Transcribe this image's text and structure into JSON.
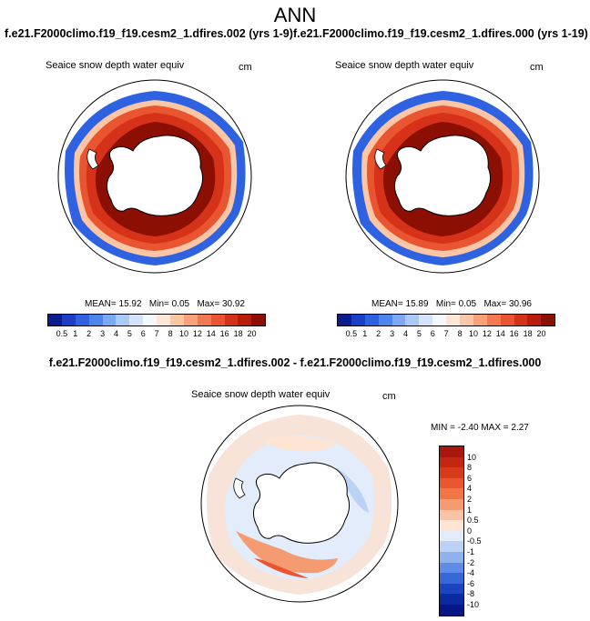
{
  "title": "ANN",
  "panels": [
    {
      "case": "f.e21.F2000climo.f19_f19.cesm2_1.dfires.002 (yrs 1-9)",
      "field": "Seaice snow depth water equiv",
      "units": "cm",
      "mean_label": "MEAN=",
      "mean": "15.92",
      "min_label": "Min=",
      "min": "0.05",
      "max_label": "Max=",
      "max": "30.92"
    },
    {
      "case": "f.e21.F2000climo.f19_f19.cesm2_1.dfires.000 (yrs 1-19)",
      "field": "Seaice snow depth water equiv",
      "units": "cm",
      "mean_label": "MEAN=",
      "mean": "15.89",
      "min_label": "Min=",
      "min": "0.05",
      "max_label": "Max=",
      "max": "30.96"
    }
  ],
  "abs_colorbar": {
    "labels": [
      "0.5",
      "1",
      "2",
      "3",
      "4",
      "5",
      "6",
      "7",
      "8",
      "10",
      "12",
      "14",
      "16",
      "18",
      "20"
    ],
    "colors": [
      "#0a1d8f",
      "#1a3fc4",
      "#2f62e0",
      "#4f84ec",
      "#7da8f2",
      "#a9c9f7",
      "#d2e3fb",
      "#f4f7fd",
      "#fde6d6",
      "#fbc6a6",
      "#f7a07a",
      "#f17a52",
      "#e85530",
      "#d63219",
      "#b81c0c",
      "#8c0f04"
    ]
  },
  "diff": {
    "title": "f.e21.F2000climo.f19_f19.cesm2_1.dfires.002 - f.e21.F2000climo.f19_f19.cesm2_1.dfires.000",
    "field": "Seaice snow depth water equiv",
    "units": "cm",
    "min_label": "MIN =",
    "min": "-2.40",
    "max_label": "MAX =",
    "max": "2.27",
    "colorbar": {
      "labels": [
        "10",
        "8",
        "6",
        "4",
        "2",
        "1",
        "0.5",
        "0",
        "-0.5",
        "-1",
        "-2",
        "-4",
        "-6",
        "-8",
        "-10"
      ],
      "colors": [
        "#a8160c",
        "#c4260f",
        "#d83b1c",
        "#e8552e",
        "#f07648",
        "#f59b72",
        "#f9c4a6",
        "#fde4d3",
        "#e2ecfa",
        "#bcd2f5",
        "#8fb2ee",
        "#5f8ce4",
        "#3867d8",
        "#1c44c0",
        "#0c2aa0",
        "#061785"
      ]
    }
  }
}
